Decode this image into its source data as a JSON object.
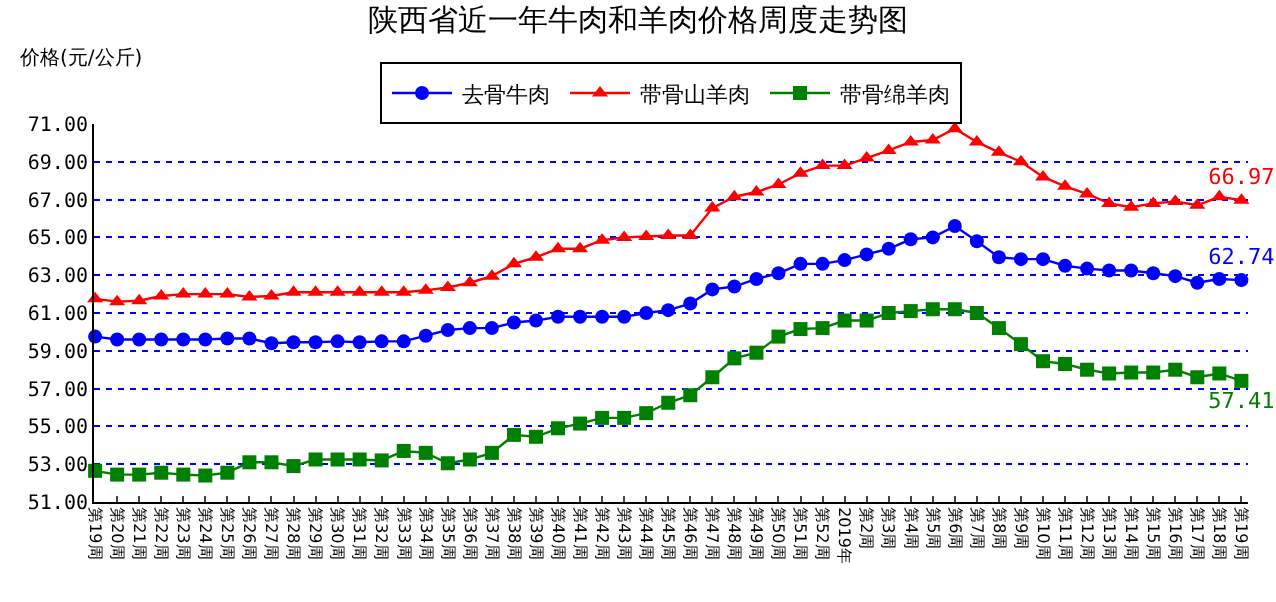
{
  "chart_data": {
    "type": "line",
    "title": "陕西省近一年牛肉和羊肉价格周度走势图",
    "ylabel": "价格(元/公斤)",
    "categories": [
      "第19周",
      "第20周",
      "第21周",
      "第22周",
      "第23周",
      "第24周",
      "第25周",
      "第26周",
      "第27周",
      "第28周",
      "第29周",
      "第30周",
      "第31周",
      "第32周",
      "第33周",
      "第34周",
      "第35周",
      "第36周",
      "第37周",
      "第38周",
      "第39周",
      "第40周",
      "第41周",
      "第42周",
      "第43周",
      "第44周",
      "第45周",
      "第46周",
      "第47周",
      "第48周",
      "第49周",
      "第50周",
      "第51周",
      "第52周",
      "2019年",
      "第2周",
      "第3周",
      "第4周",
      "第5周",
      "第6周",
      "第7周",
      "第8周",
      "第9周",
      "第10周",
      "第11周",
      "第12周",
      "第13周",
      "第14周",
      "第15周",
      "第16周",
      "第17周",
      "第18周",
      "第19周"
    ],
    "series": [
      {
        "name": "去骨牛肉",
        "color": "#0000ff",
        "marker": "circle",
        "values": [
          59.75,
          59.6,
          59.6,
          59.6,
          59.6,
          59.6,
          59.65,
          59.65,
          59.4,
          59.45,
          59.45,
          59.5,
          59.45,
          59.5,
          59.5,
          59.8,
          60.1,
          60.2,
          60.2,
          60.5,
          60.6,
          60.8,
          60.8,
          60.8,
          60.8,
          61.0,
          61.15,
          61.5,
          62.25,
          62.4,
          62.8,
          63.1,
          63.6,
          63.6,
          63.8,
          64.1,
          64.4,
          64.9,
          65.0,
          65.6,
          64.8,
          63.95,
          63.85,
          63.85,
          63.5,
          63.35,
          63.25,
          63.25,
          63.1,
          62.95,
          62.6,
          62.8,
          62.74
        ],
        "value_labels": [
          null,
          null,
          null,
          null,
          null,
          null,
          null,
          null,
          null,
          null,
          null,
          null,
          null,
          null,
          null,
          null,
          null,
          null,
          null,
          null,
          null,
          null,
          null,
          null,
          null,
          null,
          null,
          null,
          null,
          null,
          null,
          null,
          null,
          null,
          null,
          null,
          null,
          null,
          null,
          null,
          null,
          null,
          null,
          null,
          null,
          null,
          null,
          null,
          null,
          null,
          null,
          null,
          "62.74"
        ]
      },
      {
        "name": "带骨山羊肉",
        "color": "#ff0000",
        "marker": "triangle",
        "values": [
          61.75,
          61.6,
          61.65,
          61.9,
          62.0,
          62.0,
          62.0,
          61.85,
          61.9,
          62.1,
          62.1,
          62.1,
          62.1,
          62.1,
          62.1,
          62.2,
          62.35,
          62.6,
          62.95,
          63.6,
          63.95,
          64.4,
          64.4,
          64.85,
          65.0,
          65.05,
          65.1,
          65.1,
          66.55,
          67.15,
          67.4,
          67.8,
          68.4,
          68.8,
          68.8,
          69.2,
          69.6,
          70.05,
          70.15,
          70.75,
          70.05,
          69.5,
          69.0,
          68.2,
          67.7,
          67.3,
          66.8,
          66.6,
          66.8,
          66.9,
          66.7,
          67.15,
          66.97
        ],
        "value_labels": [
          null,
          null,
          null,
          null,
          null,
          null,
          null,
          null,
          null,
          null,
          null,
          null,
          null,
          null,
          null,
          null,
          null,
          null,
          null,
          null,
          null,
          null,
          null,
          null,
          null,
          null,
          null,
          null,
          null,
          null,
          null,
          null,
          null,
          null,
          null,
          null,
          null,
          null,
          null,
          null,
          null,
          null,
          null,
          null,
          null,
          null,
          null,
          null,
          null,
          null,
          null,
          null,
          "66.97"
        ]
      },
      {
        "name": "带骨绵羊肉",
        "color": "#008000",
        "marker": "square",
        "values": [
          52.65,
          52.45,
          52.45,
          52.55,
          52.45,
          52.4,
          52.55,
          53.1,
          53.1,
          52.9,
          53.25,
          53.25,
          53.25,
          53.2,
          53.7,
          53.6,
          53.05,
          53.25,
          53.6,
          54.55,
          54.45,
          54.9,
          55.15,
          55.45,
          55.45,
          55.7,
          56.25,
          56.65,
          57.6,
          58.6,
          58.9,
          59.75,
          60.15,
          60.2,
          60.6,
          60.6,
          61.0,
          61.1,
          61.2,
          61.2,
          61.0,
          60.2,
          59.35,
          58.45,
          58.3,
          58.0,
          57.8,
          57.85,
          57.85,
          58.0,
          57.6,
          57.8,
          57.41
        ],
        "value_labels": [
          null,
          null,
          null,
          null,
          null,
          null,
          null,
          null,
          null,
          null,
          null,
          null,
          null,
          null,
          null,
          null,
          null,
          null,
          null,
          null,
          null,
          null,
          null,
          null,
          null,
          null,
          null,
          null,
          null,
          null,
          null,
          null,
          null,
          null,
          null,
          null,
          null,
          null,
          null,
          null,
          null,
          null,
          null,
          null,
          null,
          null,
          null,
          null,
          null,
          null,
          null,
          null,
          "57.41"
        ]
      }
    ],
    "ylim": [
      51,
      71
    ],
    "yticks": [
      {
        "value": 51,
        "label": "51.00"
      },
      {
        "value": 53,
        "label": "53.00"
      },
      {
        "value": 55,
        "label": "55.00"
      },
      {
        "value": 57,
        "label": "57.00"
      },
      {
        "value": 59,
        "label": "59.00"
      },
      {
        "value": 61,
        "label": "61.00"
      },
      {
        "value": 63,
        "label": "63.00"
      },
      {
        "value": 65,
        "label": "65.00"
      },
      {
        "value": 67,
        "label": "67.00"
      },
      {
        "value": 69,
        "label": "69.00"
      },
      {
        "value": 71,
        "label": "71.00"
      }
    ],
    "grid": "y",
    "legend": "top",
    "line_style": "solid"
  }
}
